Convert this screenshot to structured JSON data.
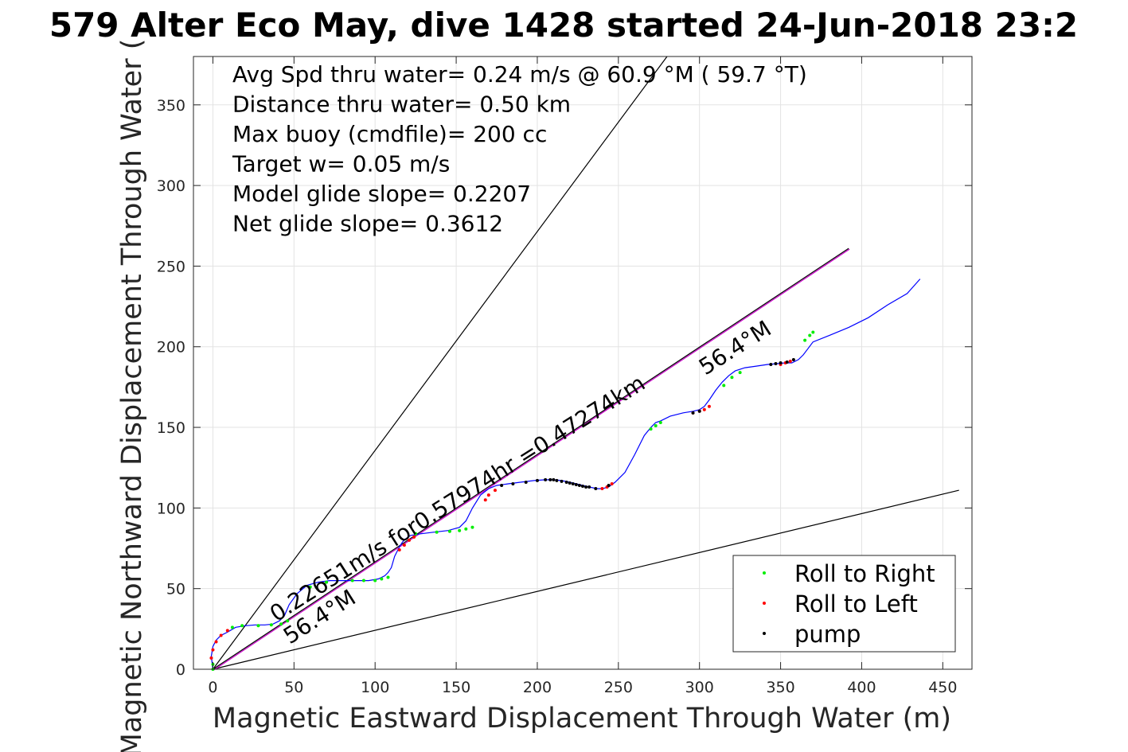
{
  "chart_data": {
    "type": "line",
    "title": "579 Alter Eco May, dive 1428 started 24-Jun-2018 23:2",
    "xlabel": "Magnetic Eastward Displacement Through Water (m)",
    "ylabel": "Magnetic Northward Displacement Through Water (",
    "xlim": [
      -12,
      468
    ],
    "ylim": [
      0,
      380
    ],
    "xticks": [
      0,
      50,
      100,
      150,
      200,
      250,
      300,
      350,
      400,
      450
    ],
    "yticks": [
      0,
      50,
      100,
      150,
      200,
      250,
      300,
      350
    ],
    "grid": true,
    "stats_lines": [
      "Avg Spd thru water=  0.24 m/s @  60.9 °M ( 59.7 °T)",
      "Distance thru water=  0.50 km",
      "Max buoy (cmdfile)= 200 cc",
      "Target w= 0.05 m/s",
      "Model glide slope= 0.2207",
      "Net glide slope= 0.3612"
    ],
    "annotations": {
      "speed_label": "0.22651m/s for0.57974hr =0.47274km",
      "heading_label_upper": "56.4°M",
      "heading_label_lower": "56.4°M"
    },
    "reference_lines": [
      {
        "x": [
          0,
          280
        ],
        "y": [
          0,
          380
        ]
      },
      {
        "x": [
          0,
          460
        ],
        "y": [
          0,
          111
        ]
      },
      {
        "x": [
          0,
          392
        ],
        "y": [
          0,
          261
        ]
      }
    ],
    "track": {
      "color": "#0000ff",
      "x": [
        0,
        -1,
        0,
        2,
        5,
        9,
        14,
        20,
        26,
        32,
        37,
        41,
        44,
        47,
        52,
        58,
        65,
        72,
        80,
        88,
        96,
        102,
        106,
        108,
        110,
        112,
        115,
        117,
        119,
        122,
        128,
        136,
        145,
        152,
        156,
        160,
        165,
        170,
        175,
        182,
        190,
        198,
        205,
        210,
        215,
        220,
        226,
        232,
        237,
        240,
        244,
        248,
        254,
        260,
        266,
        270,
        273,
        276,
        282,
        290,
        296,
        300,
        303,
        306,
        310,
        314,
        318,
        322,
        328,
        335,
        342,
        348,
        353,
        357,
        361,
        364,
        367,
        370,
        380,
        392,
        404,
        416,
        428,
        436
      ],
      "y": [
        0,
        8,
        14,
        18,
        21,
        23,
        26,
        27,
        27.5,
        27.5,
        28,
        30,
        33,
        40,
        47,
        52,
        54,
        55,
        55,
        55,
        55,
        56,
        58,
        60,
        63,
        70,
        76,
        79,
        81,
        83,
        84,
        85,
        86,
        88,
        92,
        100,
        108,
        112,
        114,
        115,
        116,
        117,
        117.5,
        117.5,
        117,
        116,
        114.5,
        113,
        112,
        112,
        113,
        116,
        122,
        133,
        145,
        150,
        153,
        154,
        157,
        159,
        160,
        161,
        163,
        167,
        173,
        178,
        182,
        185,
        187,
        188,
        189,
        189.5,
        190,
        190,
        192,
        195,
        199,
        203,
        207,
        212,
        218,
        226,
        233,
        242
      ]
    },
    "series": [
      {
        "name": "Roll to Right",
        "color": "#00ee00",
        "x": [
          0,
          0,
          12,
          18,
          28,
          36,
          42,
          46,
          60,
          70,
          86,
          93,
          100,
          104,
          108,
          125,
          138,
          146,
          152,
          156,
          160,
          270,
          273,
          276,
          315,
          320,
          325,
          365,
          368,
          370
        ],
        "y": [
          0,
          3,
          26,
          27,
          27,
          27.5,
          28,
          30,
          51,
          54,
          55,
          55,
          55,
          56,
          57,
          84,
          85,
          85.5,
          86,
          87,
          88,
          149,
          151,
          153,
          176,
          181,
          184,
          204,
          207,
          209
        ]
      },
      {
        "name": "Roll to Left",
        "color": "#ff0000",
        "x": [
          -1,
          0,
          2,
          5,
          9,
          115,
          118,
          121,
          124,
          168,
          170,
          174,
          240,
          243,
          246,
          296,
          300,
          303,
          306,
          350,
          353,
          356
        ],
        "y": [
          7,
          12,
          17,
          21,
          24,
          74,
          77,
          80,
          82,
          105,
          108,
          111,
          112,
          113,
          115,
          159,
          160,
          161,
          163,
          189,
          190,
          191
        ]
      },
      {
        "name": "pump",
        "color": "#000000",
        "x": [
          178,
          185,
          193,
          200,
          205,
          208,
          210,
          212,
          215,
          218,
          220,
          222,
          224,
          226,
          228,
          230,
          232,
          236,
          244,
          296,
          300,
          344,
          347,
          350,
          354,
          358
        ],
        "y": [
          114,
          115,
          116,
          117,
          117.5,
          117.5,
          117.5,
          117,
          116.5,
          116,
          115.5,
          115,
          114.5,
          114,
          113.5,
          113,
          113,
          112,
          114,
          159,
          160,
          189,
          189.5,
          190,
          190.5,
          192
        ]
      }
    ],
    "legend": {
      "position": "bottom-right",
      "entries": [
        "Roll to Right",
        "Roll to Left",
        "pump"
      ]
    }
  }
}
